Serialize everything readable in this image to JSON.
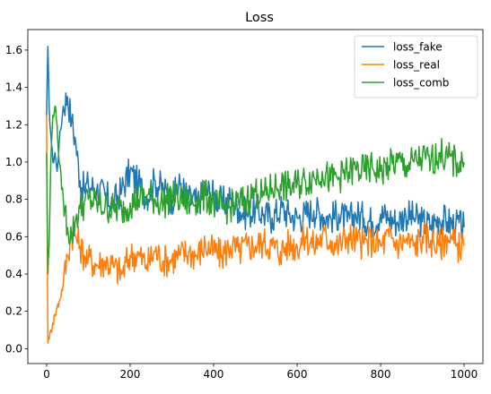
{
  "chart_data": {
    "type": "line",
    "title": "Loss",
    "xlabel": "",
    "ylabel": "",
    "xlim": [
      -45,
      1045
    ],
    "ylim": [
      -0.08,
      1.71
    ],
    "xticks": [
      0,
      200,
      400,
      600,
      800,
      1000
    ],
    "xtick_labels": [
      "0",
      "200",
      "400",
      "600",
      "800",
      "1000"
    ],
    "yticks": [
      0.0,
      0.2,
      0.4,
      0.6,
      0.8,
      1.0,
      1.2,
      1.4,
      1.6
    ],
    "ytick_labels": [
      "0.0",
      "0.2",
      "0.4",
      "0.6",
      "0.8",
      "1.0",
      "1.2",
      "1.4",
      "1.6"
    ],
    "grid": false,
    "legend_position": "top-right",
    "series": [
      {
        "name": "loss_fake",
        "color": "#1f77b4",
        "x": [
          0,
          3,
          6,
          10,
          15,
          20,
          25,
          30,
          40,
          50,
          60,
          70,
          80,
          90,
          100,
          120,
          140,
          160,
          180,
          200,
          220,
          240,
          260,
          280,
          300,
          320,
          340,
          360,
          380,
          400,
          420,
          440,
          460,
          480,
          500,
          520,
          540,
          560,
          580,
          600,
          620,
          640,
          660,
          680,
          700,
          720,
          740,
          760,
          780,
          800,
          820,
          840,
          860,
          880,
          900,
          920,
          940,
          960,
          980,
          1000
        ],
        "y": [
          1.25,
          1.62,
          1.3,
          1.15,
          1.0,
          1.05,
          0.95,
          1.1,
          1.3,
          1.35,
          1.22,
          1.1,
          0.9,
          0.85,
          0.88,
          0.85,
          0.82,
          0.78,
          0.85,
          0.95,
          0.88,
          0.82,
          0.9,
          0.85,
          0.8,
          0.88,
          0.8,
          0.78,
          0.85,
          0.82,
          0.78,
          0.8,
          0.75,
          0.72,
          0.75,
          0.72,
          0.7,
          0.75,
          0.72,
          0.7,
          0.72,
          0.74,
          0.72,
          0.7,
          0.72,
          0.68,
          0.72,
          0.7,
          0.68,
          0.72,
          0.7,
          0.68,
          0.72,
          0.7,
          0.68,
          0.66,
          0.7,
          0.68,
          0.66,
          0.65
        ]
      },
      {
        "name": "loss_real",
        "color": "#ff7f0e",
        "x": [
          0,
          3,
          6,
          10,
          15,
          20,
          25,
          30,
          40,
          50,
          60,
          70,
          80,
          90,
          100,
          120,
          140,
          160,
          180,
          200,
          220,
          240,
          260,
          280,
          300,
          320,
          340,
          360,
          380,
          400,
          420,
          440,
          460,
          480,
          500,
          520,
          540,
          560,
          580,
          600,
          620,
          640,
          660,
          680,
          700,
          720,
          740,
          760,
          780,
          800,
          820,
          840,
          860,
          880,
          900,
          920,
          940,
          960,
          980,
          1000
        ],
        "y": [
          1.25,
          0.03,
          0.05,
          0.1,
          0.14,
          0.18,
          0.22,
          0.25,
          0.35,
          0.5,
          0.62,
          0.6,
          0.55,
          0.5,
          0.48,
          0.45,
          0.47,
          0.44,
          0.4,
          0.5,
          0.5,
          0.45,
          0.52,
          0.47,
          0.48,
          0.5,
          0.52,
          0.5,
          0.55,
          0.52,
          0.5,
          0.55,
          0.52,
          0.55,
          0.55,
          0.57,
          0.55,
          0.52,
          0.56,
          0.55,
          0.6,
          0.55,
          0.6,
          0.58,
          0.55,
          0.6,
          0.58,
          0.56,
          0.58,
          0.55,
          0.6,
          0.56,
          0.58,
          0.55,
          0.6,
          0.58,
          0.55,
          0.6,
          0.55,
          0.55
        ]
      },
      {
        "name": "loss_comb",
        "color": "#2ca02c",
        "x": [
          0,
          3,
          6,
          10,
          15,
          20,
          25,
          30,
          40,
          50,
          60,
          70,
          80,
          90,
          100,
          120,
          140,
          160,
          180,
          200,
          220,
          240,
          260,
          280,
          300,
          320,
          340,
          360,
          380,
          400,
          420,
          440,
          460,
          480,
          500,
          520,
          540,
          560,
          580,
          600,
          620,
          640,
          660,
          680,
          700,
          720,
          740,
          760,
          780,
          800,
          820,
          840,
          860,
          880,
          900,
          920,
          940,
          960,
          980,
          1000
        ],
        "y": [
          1.05,
          0.4,
          0.55,
          1.0,
          1.25,
          1.3,
          1.2,
          1.0,
          0.8,
          0.65,
          0.6,
          0.7,
          0.75,
          0.78,
          0.8,
          0.78,
          0.76,
          0.75,
          0.74,
          0.78,
          0.8,
          0.82,
          0.8,
          0.78,
          0.82,
          0.8,
          0.78,
          0.8,
          0.82,
          0.78,
          0.75,
          0.76,
          0.78,
          0.8,
          0.84,
          0.82,
          0.86,
          0.88,
          0.86,
          0.88,
          0.9,
          0.92,
          0.95,
          0.9,
          0.92,
          0.94,
          0.96,
          0.95,
          0.97,
          0.95,
          0.98,
          1.0,
          0.98,
          1.0,
          1.02,
          1.0,
          1.05,
          1.02,
          1.0,
          1.0
        ]
      }
    ]
  }
}
